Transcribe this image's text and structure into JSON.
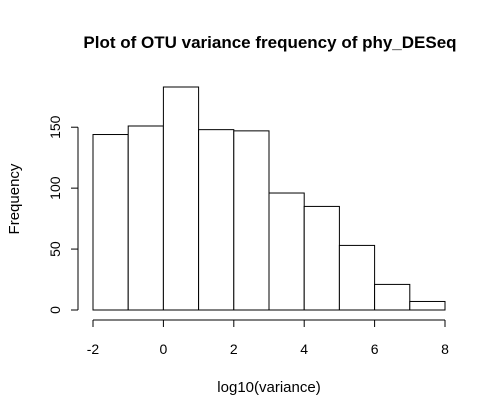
{
  "chart_data": {
    "type": "bar",
    "title": "Plot of OTU variance frequency of phy_DESeq",
    "xlabel": "log10(variance)",
    "ylabel": "Frequency",
    "bins": [
      {
        "x0": -2,
        "x1": -1,
        "count": 144
      },
      {
        "x0": -1,
        "x1": 0,
        "count": 151
      },
      {
        "x0": 0,
        "x1": 1,
        "count": 183
      },
      {
        "x0": 1,
        "x1": 2,
        "count": 148
      },
      {
        "x0": 2,
        "x1": 3,
        "count": 147
      },
      {
        "x0": 3,
        "x1": 4,
        "count": 96
      },
      {
        "x0": 4,
        "x1": 5,
        "count": 85
      },
      {
        "x0": 5,
        "x1": 6,
        "count": 53
      },
      {
        "x0": 6,
        "x1": 7,
        "count": 21
      },
      {
        "x0": 7,
        "x1": 8,
        "count": 7
      }
    ],
    "xlim": [
      -2,
      8
    ],
    "ylim": [
      0,
      183
    ],
    "x_ticks": [
      "-2",
      "0",
      "2",
      "4",
      "6",
      "8"
    ],
    "y_ticks": [
      "0",
      "50",
      "100",
      "150"
    ],
    "grid": false,
    "bar_fill": "#ffffff",
    "bar_stroke": "#000000"
  }
}
